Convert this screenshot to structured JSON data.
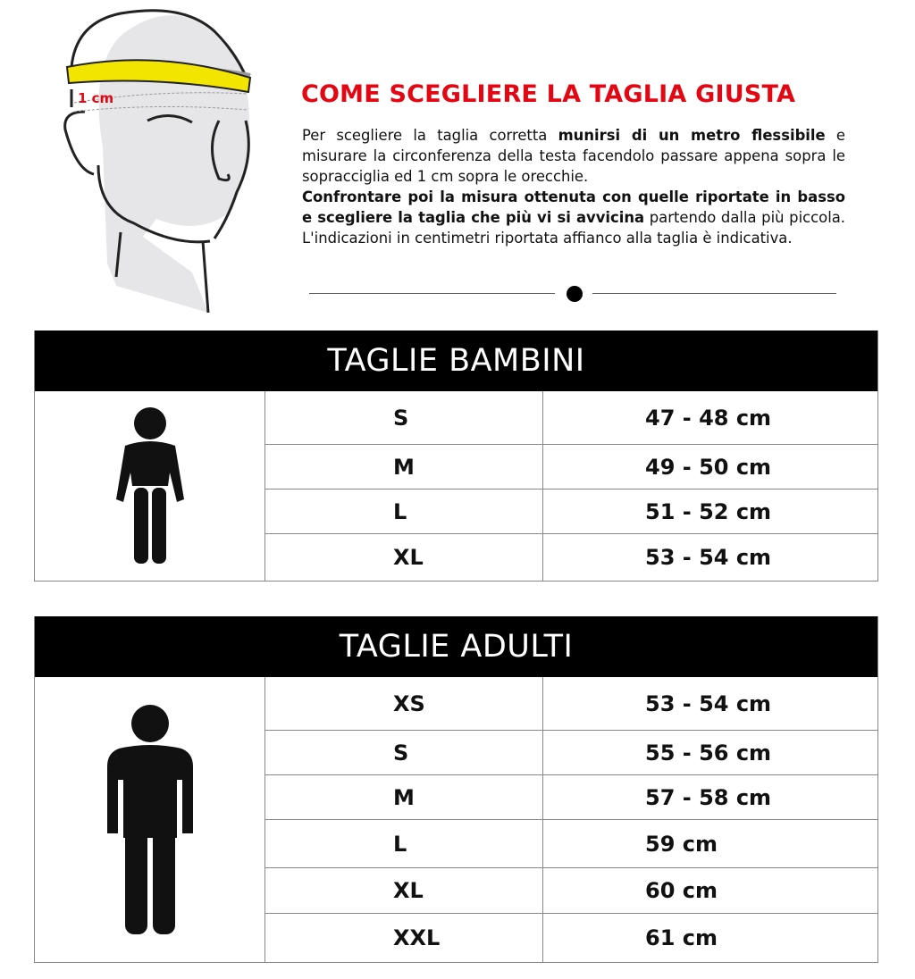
{
  "illustration": {
    "label": "1 cm",
    "tape_color": "#f2e600",
    "label_color": "#e30613"
  },
  "intro": {
    "title": "COME SCEGLIERE LA TAGLIA GIUSTA",
    "title_color": "#e30613",
    "p1": "Per scegliere la taglia corretta ",
    "p1_bold": "munirsi di un metro flessibile",
    "p2": " e misurare la circonferenza della testa facendolo passare appena sopra le sopracciglia ed 1 cm sopra le orecchie.",
    "p3_bold": "Confrontare poi la misura ottenuta con quelle riportate in basso e scegliere la taglia che più vi si avvicina",
    "p3": " partendo dalla più piccola. L'indicazioni in centimetri riportata affianco alla taglia è indicativa."
  },
  "kids": {
    "title": "TAGLIE BAMBINI",
    "rows": [
      {
        "size": "S",
        "measure": "47 - 48 cm"
      },
      {
        "size": "M",
        "measure": "49 - 50 cm"
      },
      {
        "size": "L",
        "measure": "51 - 52 cm"
      },
      {
        "size": "XL",
        "measure": "53 - 54 cm"
      }
    ]
  },
  "adults": {
    "title": "TAGLIE ADULTI",
    "rows": [
      {
        "size": "XS",
        "measure": "53 - 54 cm"
      },
      {
        "size": "S",
        "measure": "55 - 56 cm"
      },
      {
        "size": "M",
        "measure": "57 - 58 cm"
      },
      {
        "size": "L",
        "measure": "59 cm"
      },
      {
        "size": "XL",
        "measure": "60 cm"
      },
      {
        "size": "XXL",
        "measure": "61 cm"
      }
    ]
  }
}
